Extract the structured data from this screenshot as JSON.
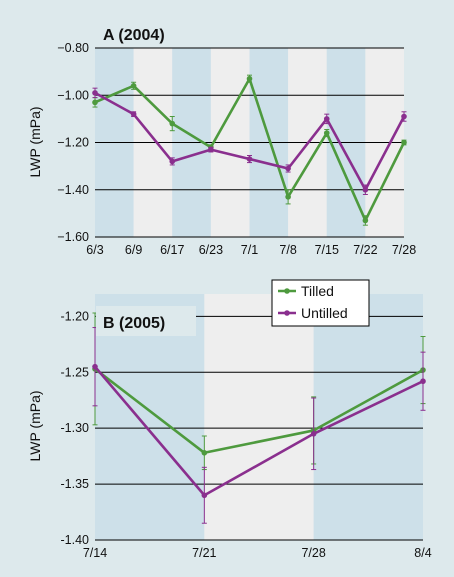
{
  "colors": {
    "background": "#dde9ec",
    "band_light": "#eeeeee",
    "band_blue": "#cde0e9",
    "tilled": "#4e9a3e",
    "untilled": "#8a2f8e",
    "gridline": "#000000"
  },
  "chart_data": [
    {
      "type": "line",
      "title": "A (2004)",
      "ylabel": "LWP (mPa)",
      "xlabel": "",
      "categories": [
        "6/3",
        "6/9",
        "6/17",
        "6/23",
        "7/1",
        "7/8",
        "7/15",
        "7/22",
        "7/28"
      ],
      "ylim": [
        -1.6,
        -0.8
      ],
      "yticks": [
        -0.8,
        -1.0,
        -1.2,
        -1.4,
        -1.6
      ],
      "ytick_labels": [
        "−0.80",
        "−1.00",
        "−1.20",
        "−1.40",
        "−1.60"
      ],
      "grid": true,
      "series": [
        {
          "name": "Tilled",
          "color": "#4e9a3e",
          "values": [
            -1.03,
            -0.96,
            -1.12,
            -1.22,
            -0.93,
            -1.43,
            -1.16,
            -1.53,
            -1.2
          ],
          "errors": [
            0.02,
            0.015,
            0.03,
            0.01,
            0.015,
            0.03,
            0.015,
            0.02,
            0.01
          ]
        },
        {
          "name": "Untilled",
          "color": "#8a2f8e",
          "values": [
            -0.99,
            -1.08,
            -1.28,
            -1.23,
            -1.27,
            -1.31,
            -1.1,
            -1.4,
            -1.09
          ],
          "errors": [
            0.02,
            0.01,
            0.015,
            0.01,
            0.015,
            0.015,
            0.02,
            0.02,
            0.02
          ]
        }
      ]
    },
    {
      "type": "line",
      "title": "B (2005)",
      "ylabel": "LWP (mPa)",
      "xlabel": "",
      "categories": [
        "7/14",
        "7/21",
        "7/28",
        "8/4"
      ],
      "ylim": [
        -1.4,
        -1.18
      ],
      "yticks": [
        -1.2,
        -1.25,
        -1.3,
        -1.35,
        -1.4
      ],
      "ytick_labels": [
        "-1.20",
        "-1.25",
        "-1.30",
        "-1.35",
        "-1.40"
      ],
      "grid": true,
      "legend": {
        "position": "top-right",
        "entries": [
          "Tilled",
          "Untilled"
        ]
      },
      "series": [
        {
          "name": "Tilled",
          "color": "#4e9a3e",
          "values": [
            -1.247,
            -1.322,
            -1.302,
            -1.248
          ],
          "errors": [
            0.05,
            0.015,
            0.03,
            0.03
          ]
        },
        {
          "name": "Untilled",
          "color": "#8a2f8e",
          "values": [
            -1.245,
            -1.36,
            -1.305,
            -1.258
          ],
          "errors": [
            0.035,
            0.025,
            0.032,
            0.026
          ]
        }
      ]
    }
  ]
}
